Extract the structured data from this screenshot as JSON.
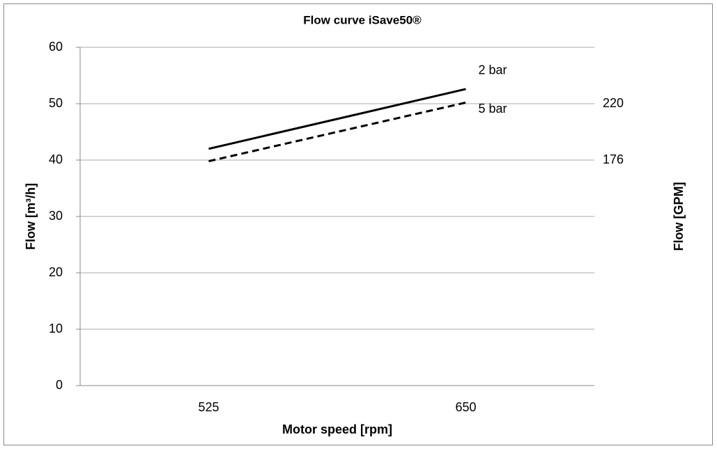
{
  "chart_data": {
    "type": "line",
    "title": "Flow curve iSave50®",
    "x_label": "Motor speed [rpm]",
    "y_label": "Flow [m³/h]",
    "y2_label": "Flow [GPM]",
    "categories": [
      "525",
      "650"
    ],
    "series": [
      {
        "name": "2 bar",
        "color": "#000000",
        "dash": "solid",
        "values": [
          42,
          52.6
        ]
      },
      {
        "name": "5 bar",
        "color": "#000000",
        "dash": "dashed",
        "values": [
          39.8,
          50.2
        ]
      }
    ],
    "ylim": [
      0,
      60
    ],
    "yticks": [
      0,
      10,
      20,
      30,
      40,
      50,
      60
    ],
    "y2lim": [
      0,
      264
    ],
    "y2ticks": [
      176,
      220
    ],
    "grid": true
  }
}
